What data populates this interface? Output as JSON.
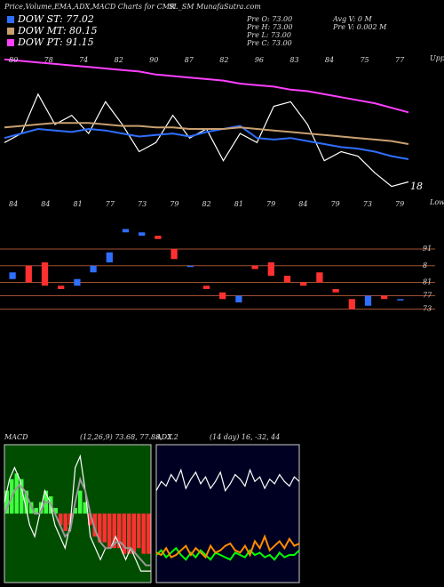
{
  "header": {
    "title": "Price,Volume,EMA,ADX,MACD Charts for CMR",
    "site": "SL_SM MunafaSutra.com",
    "stats_left": [
      "Pre  O: 73.00",
      "Pre  H: 73.00",
      "Pre  L: 73.00",
      "Pre  C: 73.00"
    ],
    "stats_right": [
      "Avg V: 0  M",
      "Pre  V: 0.002  M"
    ]
  },
  "chart_data": [
    {
      "type": "line",
      "upper_label": "Upper",
      "lower_label": "Lower",
      "end_label": "18",
      "top_labels": [
        "80",
        "78",
        "74",
        "82",
        "90",
        "87",
        "82",
        "96",
        "83",
        "84",
        "75",
        "77"
      ],
      "bottom_labels": [
        "84",
        "84",
        "81",
        "77",
        "73",
        "79",
        "82",
        "81",
        "79",
        "84",
        "79",
        "73",
        "79"
      ],
      "ylim": [
        0,
        100
      ],
      "series": [
        {
          "color": "#ffffff",
          "values": [
            41,
            47,
            73,
            53,
            59,
            47,
            68,
            53,
            35,
            41,
            59,
            44,
            50,
            29,
            47,
            41,
            65,
            68,
            53,
            29,
            35,
            32,
            21,
            12,
            15
          ]
        },
        {
          "name": "DOW ST: 77.02",
          "color": "#2f6fff",
          "values": [
            44,
            47,
            50,
            49,
            48,
            50,
            49,
            47,
            45,
            46,
            47,
            45,
            48,
            50,
            52,
            44,
            43,
            44,
            42,
            40,
            38,
            37,
            35,
            32,
            30
          ]
        },
        {
          "name": "DOW MT: 80.15",
          "color": "#c8a070",
          "values": [
            51,
            52,
            53,
            54,
            54,
            54,
            53,
            52,
            52,
            51,
            51,
            50,
            50,
            50,
            51,
            50,
            49,
            48,
            47,
            46,
            45,
            44,
            43,
            42,
            40
          ]
        },
        {
          "name": "DOW PT: 91.15",
          "color": "#ff40ff",
          "values": [
            96,
            95,
            94,
            93,
            92,
            91,
            90,
            89,
            88,
            86,
            85,
            84,
            83,
            82,
            80,
            79,
            78,
            76,
            75,
            73,
            71,
            69,
            67,
            64,
            61
          ]
        }
      ]
    },
    {
      "type": "candlestick",
      "ylim": [
        67,
        99
      ],
      "yticks": [
        91,
        {
          "value": 86,
          "label": "8"
        },
        81,
        77,
        73
      ],
      "up_color": "#2f6fff",
      "down_color": "#ff3030",
      "open": [
        82,
        86,
        87,
        80,
        80,
        84,
        87,
        96,
        95,
        95,
        91,
        86,
        80,
        78,
        75,
        86,
        87,
        83,
        81,
        84,
        79,
        76,
        74,
        77,
        76
      ],
      "close": [
        84,
        81,
        80,
        79,
        82,
        86,
        90,
        97,
        96,
        94,
        88,
        86,
        79,
        76,
        77,
        85,
        83,
        81,
        80,
        81,
        78,
        73,
        77,
        76,
        76
      ]
    },
    {
      "type": "macd",
      "title": "MACD",
      "params": "(12,26,9) 73.68, 77.88, -2.2",
      "ylim": [
        -6,
        6
      ],
      "histogram": [
        2,
        3,
        3.5,
        3,
        2,
        1,
        0.5,
        1,
        2,
        1.5,
        0.5,
        -1,
        -1.5,
        -1,
        0.5,
        2,
        1,
        -1,
        -2,
        -2.5,
        -2.5,
        -3,
        -3,
        -3,
        -3.5,
        -3.5,
        -3.5,
        -3,
        -3.5,
        -3.5
      ],
      "series": [
        {
          "color": "#ffffff",
          "values": [
            1,
            3,
            4,
            3,
            1,
            -1,
            -2,
            0,
            2,
            1,
            -1,
            -2,
            -3,
            -1,
            4,
            5,
            2,
            -2,
            -3,
            -4,
            -3,
            -3,
            -2,
            -3,
            -4,
            -3,
            -4,
            -5,
            -5,
            -5
          ]
        },
        {
          "color": "#999999",
          "values": [
            0,
            1,
            2,
            2.5,
            2,
            1,
            0,
            0,
            1,
            1,
            0,
            -1,
            -2,
            -1.5,
            1,
            3,
            2,
            0,
            -1.5,
            -2.5,
            -3,
            -3,
            -2.5,
            -2.5,
            -3,
            -3,
            -3.5,
            -4,
            -4.5,
            -4.5
          ]
        }
      ]
    },
    {
      "type": "adx",
      "title": "ADX",
      "params": "(14 day) 16, -32, 44",
      "ylim": [
        0,
        60
      ],
      "series": [
        {
          "color": "#ffffff",
          "values": [
            40,
            44,
            42,
            47,
            44,
            49,
            41,
            45,
            48,
            43,
            46,
            41,
            44,
            48,
            40,
            43,
            47,
            45,
            42,
            49,
            44,
            46,
            41,
            45,
            43,
            47,
            44,
            42,
            46,
            44
          ]
        },
        {
          "color": "#00ff00",
          "values": [
            12,
            14,
            11,
            13,
            15,
            12,
            10,
            13,
            11,
            14,
            12,
            10,
            13,
            12,
            11,
            10,
            13,
            12,
            11,
            14,
            12,
            13,
            11,
            12,
            10,
            13,
            11,
            12,
            12,
            14
          ]
        },
        {
          "color": "#ff8c00",
          "values": [
            13,
            12,
            15,
            11,
            12,
            14,
            16,
            12,
            15,
            13,
            11,
            16,
            13,
            14,
            16,
            17,
            14,
            13,
            16,
            12,
            18,
            15,
            20,
            14,
            16,
            18,
            15,
            19,
            16,
            17
          ]
        }
      ]
    }
  ]
}
